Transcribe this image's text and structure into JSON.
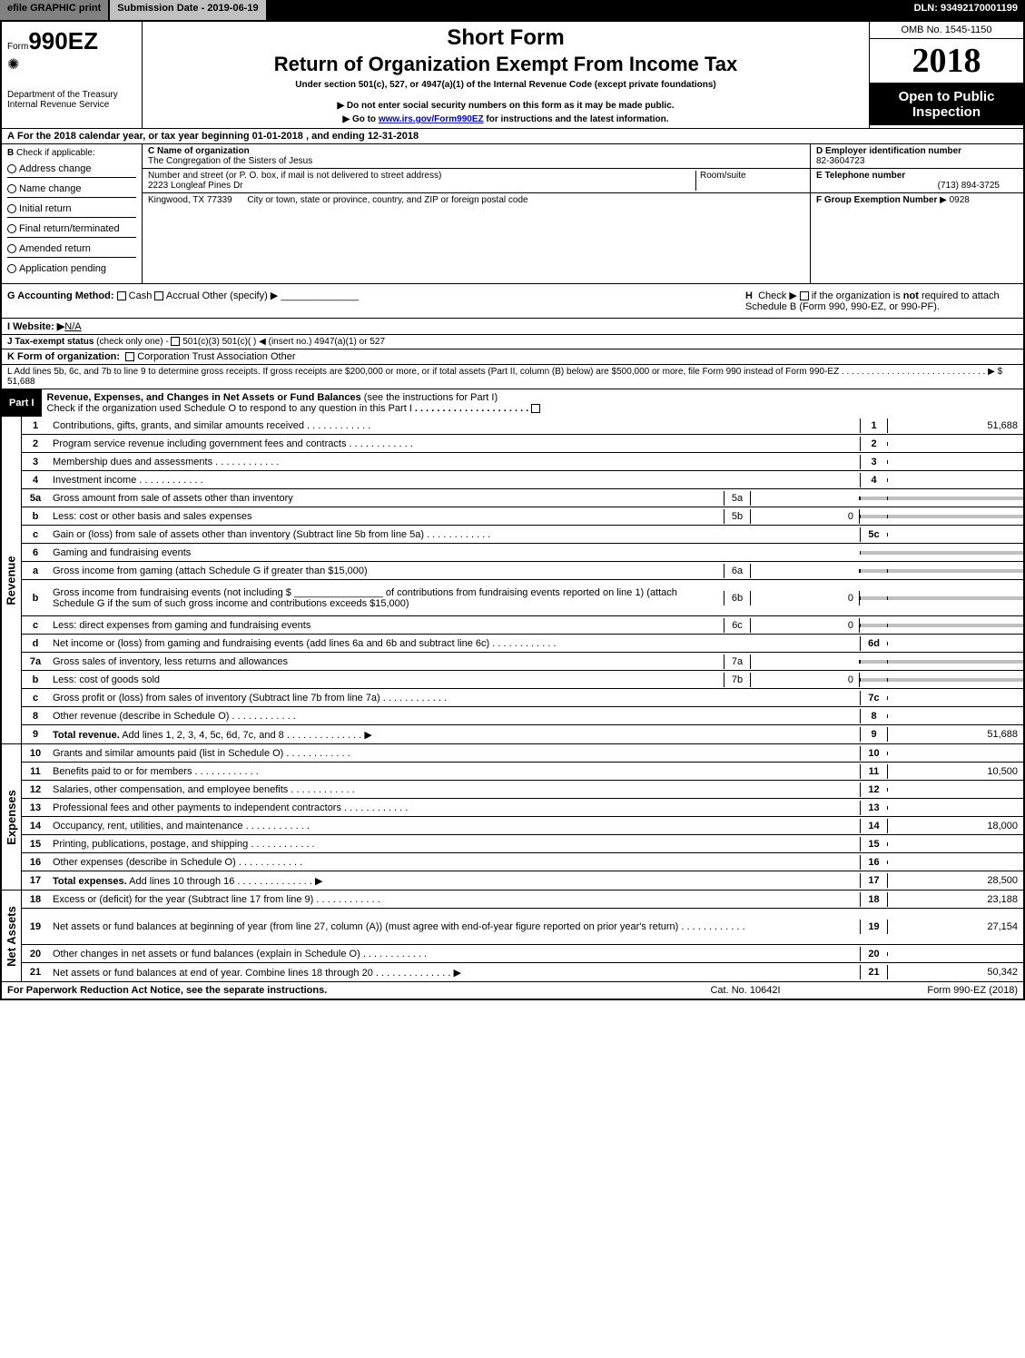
{
  "topbar": {
    "efile": "efile GRAPHIC print",
    "submission": "Submission Date - 2019-06-19",
    "dln": "DLN: 93492170001199"
  },
  "header": {
    "form_prefix": "Form",
    "form_number": "990EZ",
    "short_form": "Short Form",
    "return_title": "Return of Organization Exempt From Income Tax",
    "under_section": "Under section 501(c), 527, or 4947(a)(1) of the Internal Revenue Code (except private foundations)",
    "do_not_enter": "Do not enter social security numbers on this form as it may be made public.",
    "go_to": "Go to ",
    "go_to_link": "www.irs.gov/Form990EZ",
    "go_to_suffix": " for instructions and the latest information.",
    "omb": "OMB No. 1545-1150",
    "year": "2018",
    "open_public": "Open to Public Inspection",
    "dept": "Department of the Treasury",
    "irs": "Internal Revenue Service"
  },
  "row_a": {
    "label": "A",
    "text1": "For the 2018 calendar year, or tax year beginning ",
    "date1": "01-01-2018",
    "text2": " , and ending ",
    "date2": "12-31-2018"
  },
  "col_b": {
    "label": "B",
    "check_if": "Check if applicable:",
    "items": [
      "Address change",
      "Name change",
      "Initial return",
      "Final return/terminated",
      "Amended return",
      "Application pending"
    ]
  },
  "col_c": {
    "name_label": "C Name of organization",
    "name_value": "The Congregation of the Sisters of Jesus",
    "addr_label": "Number and street (or P. O. box, if mail is not delivered to street address)",
    "room_label": "Room/suite",
    "addr_value": "2223 Longleaf Pines Dr",
    "city_value": "Kingwood, TX  77339",
    "city_label": "City or town, state or province, country, and ZIP or foreign postal code"
  },
  "col_d": {
    "label": "D Employer identification number",
    "value": "82-3604723"
  },
  "col_e": {
    "label": "E Telephone number",
    "value": "(713) 894-3725"
  },
  "col_f": {
    "label": "F Group Exemption Number",
    "arrow": "▶",
    "value": "0928"
  },
  "row_g": {
    "label": "G Accounting Method:",
    "cash": "Cash",
    "accrual": "Accrual",
    "other": "Other (specify) ▶"
  },
  "row_h": {
    "label": "H",
    "text1": "Check ▶",
    "text2": "if the organization is ",
    "not": "not",
    "text3": " required to attach Schedule B (Form 990, 990-EZ, or 990-PF)."
  },
  "row_i": {
    "label": "I Website: ▶",
    "value": "N/A"
  },
  "row_j": {
    "label": "J Tax-exempt status",
    "text": " (check only one) - ",
    "opts": "501(c)(3)   501(c)(  ) ◀ (insert no.)   4947(a)(1) or   527"
  },
  "row_k": {
    "label": "K Form of organization:",
    "opts": "Corporation   Trust   Association   Other"
  },
  "row_l": {
    "text": "L Add lines 5b, 6c, and 7b to line 9 to determine gross receipts. If gross receipts are $200,000 or more, or if total assets (Part II, column (B) below) are $500,000 or more, file Form 990 instead of Form 990-EZ",
    "arrow": "▶",
    "value": "$ 51,688"
  },
  "part1": {
    "num": "Part I",
    "title": "Revenue, Expenses, and Changes in Net Assets or Fund Balances ",
    "sub": "(see the instructions for Part I)",
    "check": "Check if the organization used Schedule O to respond to any question in this Part I"
  },
  "sidelabels": {
    "revenue": "Revenue",
    "expenses": "Expenses",
    "netassets": "Net Assets"
  },
  "revenue_lines": [
    {
      "n": "1",
      "d": "Contributions, gifts, grants, and similar amounts received",
      "rn": "1",
      "rv": "51,688"
    },
    {
      "n": "2",
      "d": "Program service revenue including government fees and contracts",
      "rn": "2",
      "rv": ""
    },
    {
      "n": "3",
      "d": "Membership dues and assessments",
      "rn": "3",
      "rv": ""
    },
    {
      "n": "4",
      "d": "Investment income",
      "rn": "4",
      "rv": ""
    },
    {
      "n": "5a",
      "d": "Gross amount from sale of assets other than inventory",
      "mn": "5a",
      "mv": "",
      "shade": true
    },
    {
      "n": "b",
      "d": "Less: cost or other basis and sales expenses",
      "mn": "5b",
      "mv": "0",
      "shade": true
    },
    {
      "n": "c",
      "d": "Gain or (loss) from sale of assets other than inventory (Subtract line 5b from line 5a)",
      "rn": "5c",
      "rv": ""
    },
    {
      "n": "6",
      "d": "Gaming and fundraising events",
      "shade": true,
      "noboxes": true
    },
    {
      "n": "a",
      "d": "Gross income from gaming (attach Schedule G if greater than $15,000)",
      "mn": "6a",
      "mv": "",
      "shade": true
    },
    {
      "n": "b",
      "d": "Gross income from fundraising events (not including $ ________________ of contributions from fundraising events reported on line 1) (attach Schedule G if the sum of such gross income and contributions exceeds $15,000)",
      "mn": "6b",
      "mv": "0",
      "shade": true,
      "tall": true
    },
    {
      "n": "c",
      "d": "Less: direct expenses from gaming and fundraising events",
      "mn": "6c",
      "mv": "0",
      "shade": true
    },
    {
      "n": "d",
      "d": "Net income or (loss) from gaming and fundraising events (add lines 6a and 6b and subtract line 6c)",
      "rn": "6d",
      "rv": ""
    },
    {
      "n": "7a",
      "d": "Gross sales of inventory, less returns and allowances",
      "mn": "7a",
      "mv": "",
      "shade": true
    },
    {
      "n": "b",
      "d": "Less: cost of goods sold",
      "mn": "7b",
      "mv": "0",
      "shade": true
    },
    {
      "n": "c",
      "d": "Gross profit or (loss) from sales of inventory (Subtract line 7b from line 7a)",
      "rn": "7c",
      "rv": ""
    },
    {
      "n": "8",
      "d": "Other revenue (describe in Schedule O)",
      "rn": "8",
      "rv": ""
    },
    {
      "n": "9",
      "d": "Total revenue. Add lines 1, 2, 3, 4, 5c, 6d, 7c, and 8",
      "rn": "9",
      "rv": "51,688",
      "bold": true,
      "arrow": true
    }
  ],
  "expense_lines": [
    {
      "n": "10",
      "d": "Grants and similar amounts paid (list in Schedule O)",
      "rn": "10",
      "rv": ""
    },
    {
      "n": "11",
      "d": "Benefits paid to or for members",
      "rn": "11",
      "rv": "10,500"
    },
    {
      "n": "12",
      "d": "Salaries, other compensation, and employee benefits",
      "rn": "12",
      "rv": ""
    },
    {
      "n": "13",
      "d": "Professional fees and other payments to independent contractors",
      "rn": "13",
      "rv": ""
    },
    {
      "n": "14",
      "d": "Occupancy, rent, utilities, and maintenance",
      "rn": "14",
      "rv": "18,000"
    },
    {
      "n": "15",
      "d": "Printing, publications, postage, and shipping",
      "rn": "15",
      "rv": ""
    },
    {
      "n": "16",
      "d": "Other expenses (describe in Schedule O)",
      "rn": "16",
      "rv": ""
    },
    {
      "n": "17",
      "d": "Total expenses. Add lines 10 through 16",
      "rn": "17",
      "rv": "28,500",
      "bold": true,
      "arrow": true
    }
  ],
  "netasset_lines": [
    {
      "n": "18",
      "d": "Excess or (deficit) for the year (Subtract line 17 from line 9)",
      "rn": "18",
      "rv": "23,188"
    },
    {
      "n": "19",
      "d": "Net assets or fund balances at beginning of year (from line 27, column (A)) (must agree with end-of-year figure reported on prior year's return)",
      "rn": "19",
      "rv": "27,154",
      "tall": true
    },
    {
      "n": "20",
      "d": "Other changes in net assets or fund balances (explain in Schedule O)",
      "rn": "20",
      "rv": ""
    },
    {
      "n": "21",
      "d": "Net assets or fund balances at end of year. Combine lines 18 through 20",
      "rn": "21",
      "rv": "50,342",
      "arrow": true
    }
  ],
  "footer": {
    "left": "For Paperwork Reduction Act Notice, see the separate instructions.",
    "center": "Cat. No. 10642I",
    "right": "Form 990-EZ (2018)"
  }
}
